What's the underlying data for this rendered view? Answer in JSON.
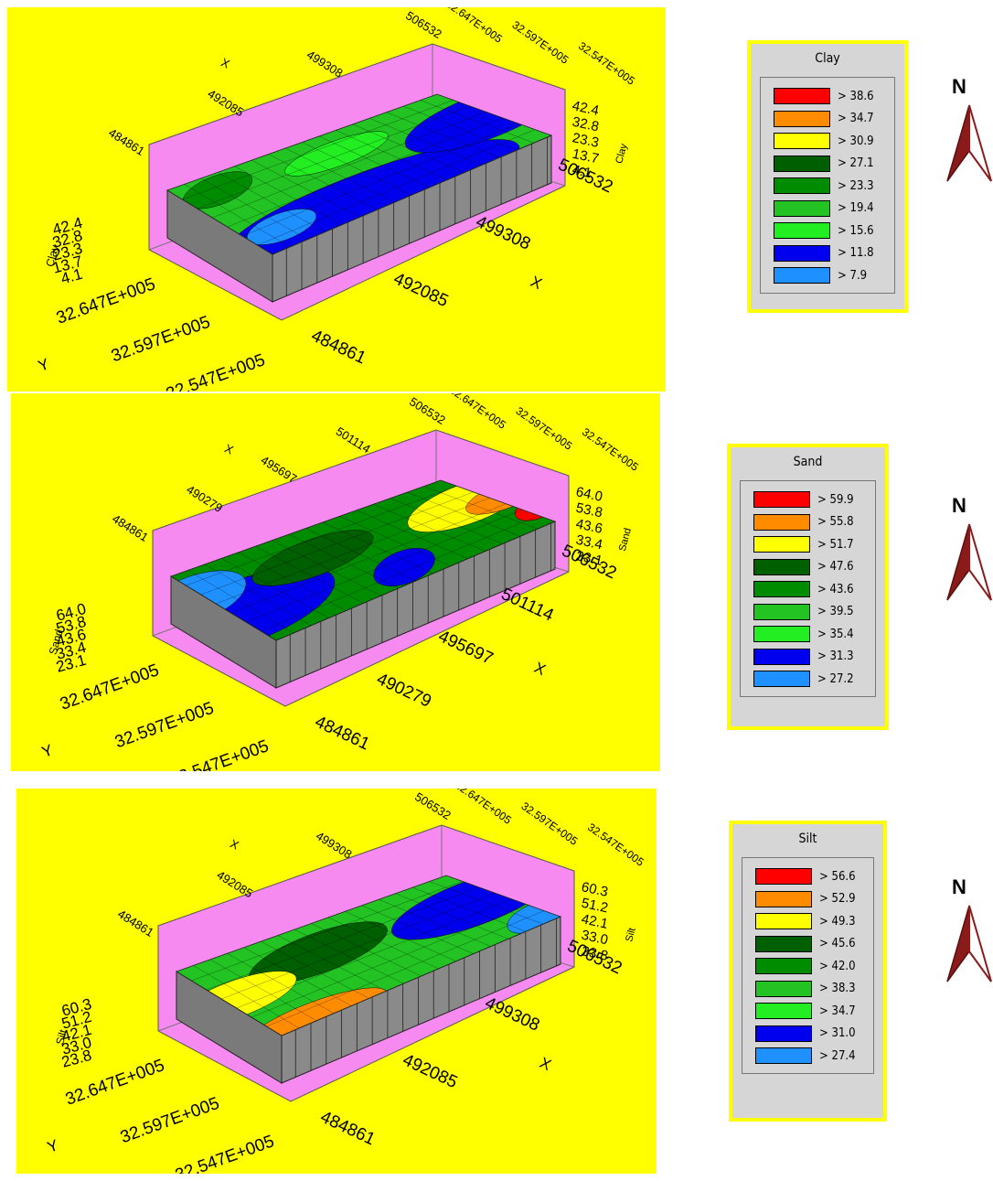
{
  "panels": [
    {
      "plot": {
        "x_label": "X",
        "y_label": "Y",
        "z_label": "Clay",
        "x_ticks": [
          "484861",
          "492085",
          "499308",
          "506532"
        ],
        "y_ticks": [
          "32.547E+005",
          "32.597E+005",
          "32.647E+005"
        ],
        "z_ticks": [
          "4.1",
          "13.7",
          "23.3",
          "32.8",
          "42.4"
        ]
      },
      "legend": {
        "title": "Clay",
        "entries": [
          {
            "label": "> 38.6",
            "color": "#ff0000"
          },
          {
            "label": "> 34.7",
            "color": "#ff8c00"
          },
          {
            "label": "> 30.9",
            "color": "#ffff00"
          },
          {
            "label": "> 27.1",
            "color": "#005f00"
          },
          {
            "label": "> 23.3",
            "color": "#008c00"
          },
          {
            "label": "> 19.4",
            "color": "#22c322"
          },
          {
            "label": "> 15.6",
            "color": "#22ee22"
          },
          {
            "label": "> 11.8",
            "color": "#0000ee"
          },
          {
            "label": "> 7.9",
            "color": "#1e90ff"
          }
        ]
      },
      "north": "N"
    },
    {
      "plot": {
        "x_label": "X",
        "y_label": "Y",
        "z_label": "Sand",
        "x_ticks": [
          "484861",
          "490279",
          "495697",
          "501114",
          "506532"
        ],
        "y_ticks": [
          "32.547E+005",
          "32.597E+005",
          "32.647E+005"
        ],
        "z_ticks": [
          "23.1",
          "33.4",
          "43.6",
          "53.8",
          "64.0"
        ]
      },
      "legend": {
        "title": "Sand",
        "entries": [
          {
            "label": "> 59.9",
            "color": "#ff0000"
          },
          {
            "label": "> 55.8",
            "color": "#ff8c00"
          },
          {
            "label": "> 51.7",
            "color": "#ffff00"
          },
          {
            "label": "> 47.6",
            "color": "#005f00"
          },
          {
            "label": "> 43.6",
            "color": "#008c00"
          },
          {
            "label": "> 39.5",
            "color": "#22c322"
          },
          {
            "label": "> 35.4",
            "color": "#22ee22"
          },
          {
            "label": "> 31.3",
            "color": "#0000ee"
          },
          {
            "label": "> 27.2",
            "color": "#1e90ff"
          }
        ]
      },
      "north": "N"
    },
    {
      "plot": {
        "x_label": "X",
        "y_label": "Y",
        "z_label": "Silt",
        "x_ticks": [
          "484861",
          "492085",
          "499308",
          "506532"
        ],
        "y_ticks": [
          "32.547E+005",
          "32.597E+005",
          "32.647E+005"
        ],
        "z_ticks": [
          "23.8",
          "33.0",
          "42.1",
          "51.2",
          "60.3"
        ]
      },
      "legend": {
        "title": "Silt",
        "entries": [
          {
            "label": "> 56.6",
            "color": "#ff0000"
          },
          {
            "label": "> 52.9",
            "color": "#ff8c00"
          },
          {
            "label": "> 49.3",
            "color": "#ffff00"
          },
          {
            "label": "> 45.6",
            "color": "#005f00"
          },
          {
            "label": "> 42.0",
            "color": "#008c00"
          },
          {
            "label": "> 38.3",
            "color": "#22c322"
          },
          {
            "label": "> 34.7",
            "color": "#22ee22"
          },
          {
            "label": "> 31.0",
            "color": "#0000ee"
          },
          {
            "label": "> 27.4",
            "color": "#1e90ff"
          }
        ]
      },
      "north": "N"
    }
  ]
}
